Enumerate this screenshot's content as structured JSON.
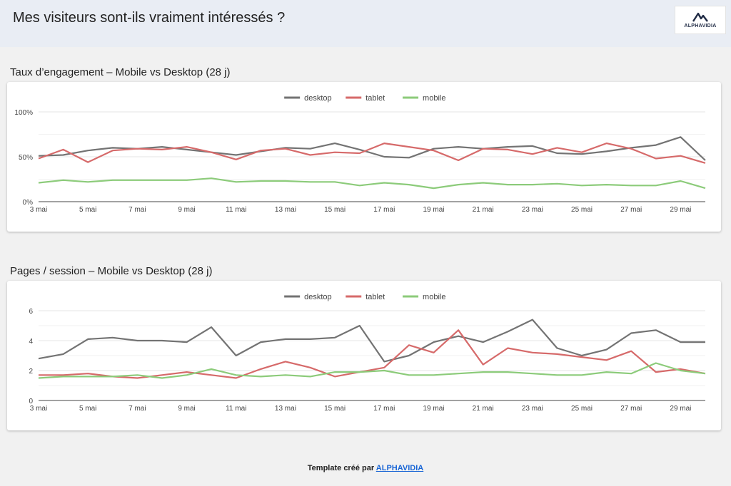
{
  "page": {
    "title": "Mes visiteurs sont-ils vraiment intéressés ?",
    "logo_text": "ALPHAVIDIA"
  },
  "footer": {
    "prefix": "Template créé par ",
    "link": "ALPHAVIDIA"
  },
  "chart_data": [
    {
      "type": "line",
      "title": "Taux d’engagement – Mobile vs Desktop (28 j)",
      "x": [
        "3 mai",
        "4 mai",
        "5 mai",
        "6 mai",
        "7 mai",
        "8 mai",
        "9 mai",
        "10 mai",
        "11 mai",
        "12 mai",
        "13 mai",
        "14 mai",
        "15 mai",
        "16 mai",
        "17 mai",
        "18 mai",
        "19 mai",
        "20 mai",
        "21 mai",
        "22 mai",
        "23 mai",
        "24 mai",
        "25 mai",
        "26 mai",
        "27 mai",
        "28 mai",
        "29 mai",
        "30 mai"
      ],
      "x_tick_labels": [
        "3 mai",
        "5 mai",
        "7 mai",
        "9 mai",
        "11 mai",
        "13 mai",
        "15 mai",
        "17 mai",
        "19 mai",
        "21 mai",
        "23 mai",
        "25 mai",
        "27 mai",
        "29 mai"
      ],
      "y_tick_labels": [
        "0%",
        "50%",
        "100%"
      ],
      "ylim": [
        0,
        100
      ],
      "legend": "top-center",
      "series": [
        {
          "name": "desktop",
          "color": "#737373",
          "values": [
            51,
            52,
            57,
            60,
            59,
            61,
            58,
            55,
            52,
            56,
            60,
            59,
            65,
            58,
            50,
            49,
            59,
            61,
            59,
            61,
            62,
            54,
            53,
            56,
            60,
            63,
            72,
            46
          ]
        },
        {
          "name": "tablet",
          "color": "#d66a6a",
          "values": [
            48,
            58,
            44,
            57,
            59,
            58,
            61,
            55,
            47,
            57,
            59,
            52,
            55,
            54,
            65,
            61,
            57,
            46,
            59,
            58,
            53,
            60,
            55,
            65,
            59,
            48,
            51,
            43
          ]
        },
        {
          "name": "mobile",
          "color": "#8ccb7a",
          "values": [
            21,
            24,
            22,
            24,
            24,
            24,
            24,
            26,
            22,
            23,
            23,
            22,
            22,
            18,
            21,
            19,
            15,
            19,
            21,
            19,
            19,
            20,
            18,
            19,
            18,
            18,
            23,
            15
          ]
        }
      ]
    },
    {
      "type": "line",
      "title": "Pages / session – Mobile vs Desktop (28 j)",
      "x": [
        "3 mai",
        "4 mai",
        "5 mai",
        "6 mai",
        "7 mai",
        "8 mai",
        "9 mai",
        "10 mai",
        "11 mai",
        "12 mai",
        "13 mai",
        "14 mai",
        "15 mai",
        "16 mai",
        "17 mai",
        "18 mai",
        "19 mai",
        "20 mai",
        "21 mai",
        "22 mai",
        "23 mai",
        "24 mai",
        "25 mai",
        "26 mai",
        "27 mai",
        "28 mai",
        "29 mai",
        "30 mai"
      ],
      "x_tick_labels": [
        "3 mai",
        "5 mai",
        "7 mai",
        "9 mai",
        "11 mai",
        "13 mai",
        "15 mai",
        "17 mai",
        "19 mai",
        "21 mai",
        "23 mai",
        "25 mai",
        "27 mai",
        "29 mai"
      ],
      "y_tick_labels": [
        "0",
        "2",
        "4",
        "6"
      ],
      "ylim": [
        0,
        6
      ],
      "legend": "top-center",
      "series": [
        {
          "name": "desktop",
          "color": "#737373",
          "values": [
            2.8,
            3.1,
            4.1,
            4.2,
            4.0,
            4.0,
            3.9,
            4.9,
            3.0,
            3.9,
            4.1,
            4.1,
            4.2,
            5.0,
            2.6,
            3.0,
            3.9,
            4.3,
            3.9,
            4.6,
            5.4,
            3.5,
            3.0,
            3.4,
            4.5,
            4.7,
            3.9,
            3.9
          ]
        },
        {
          "name": "tablet",
          "color": "#d66a6a",
          "values": [
            1.7,
            1.7,
            1.8,
            1.6,
            1.5,
            1.7,
            1.9,
            1.7,
            1.5,
            2.1,
            2.6,
            2.2,
            1.6,
            1.9,
            2.2,
            3.7,
            3.2,
            4.7,
            2.4,
            3.5,
            3.2,
            3.1,
            2.9,
            2.7,
            3.3,
            1.9,
            2.1,
            1.8
          ]
        },
        {
          "name": "mobile",
          "color": "#8ccb7a",
          "values": [
            1.5,
            1.6,
            1.6,
            1.6,
            1.7,
            1.5,
            1.7,
            2.1,
            1.7,
            1.6,
            1.7,
            1.6,
            1.9,
            1.9,
            2.0,
            1.7,
            1.7,
            1.8,
            1.9,
            1.9,
            1.8,
            1.7,
            1.7,
            1.9,
            1.8,
            2.5,
            2.0,
            1.8
          ]
        }
      ]
    }
  ]
}
